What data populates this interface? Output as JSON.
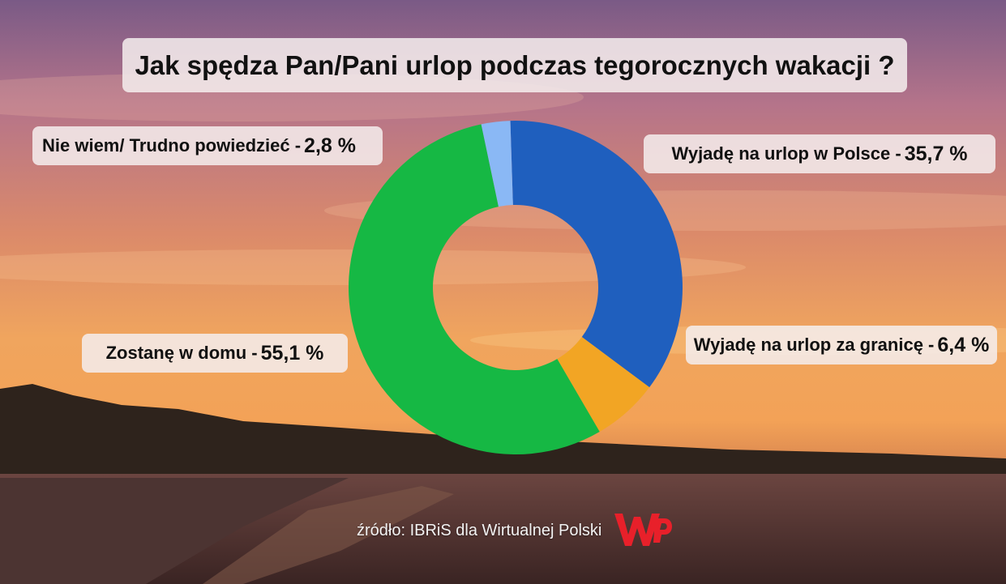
{
  "chart_data": {
    "type": "pie",
    "title": "Jak spędza Pan/Pani urlop podczas tegorocznych wakacji ?",
    "categories": [
      "Wyjadę na urlop w Polsce",
      "Wyjadę na urlop za granicę",
      "Zostanę w domu",
      "Nie wiem/ Trudno powiedzieć"
    ],
    "values": [
      35.7,
      6.4,
      55.1,
      2.8
    ],
    "colors": [
      "#1f5fbe",
      "#f2a524",
      "#16b844",
      "#8ab8f5"
    ],
    "donut": true
  },
  "labels": {
    "nie": {
      "text": "Nie wiem/ Trudno powiedzieć -",
      "value": "2,8 %"
    },
    "polsce": {
      "text": "Wyjadę na urlop w Polsce -",
      "value": "35,7 %"
    },
    "granica": {
      "text": "Wyjadę na urlop za granicę -",
      "value": "6,4 %"
    },
    "dom": {
      "text": "Zostanę w domu -",
      "value": "55,1 %"
    }
  },
  "source": "źródło: IBRiS dla Wirtualnej Polski",
  "logo": {
    "name": "wp-logo",
    "color": "#e8202a"
  }
}
